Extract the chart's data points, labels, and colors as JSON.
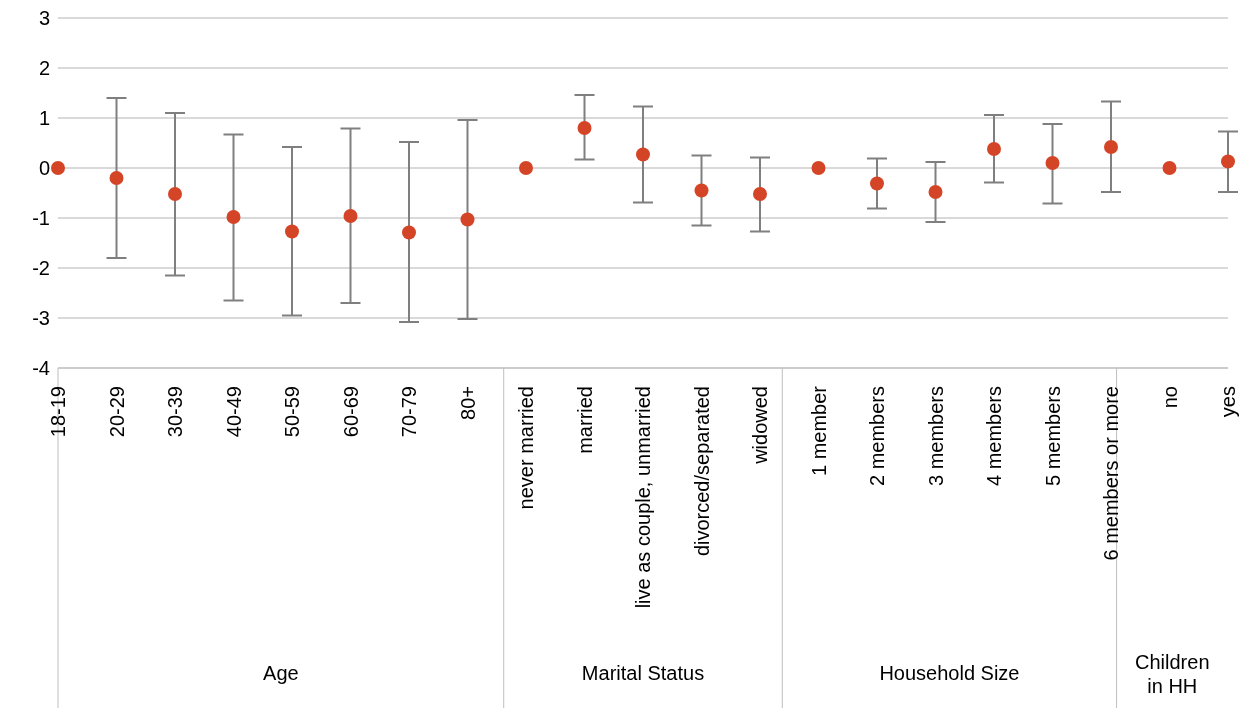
{
  "chart_data": {
    "type": "scatter",
    "categories": [
      "18-19",
      "20-29",
      "30-39",
      "40-49",
      "50-59",
      "60-69",
      "70-79",
      "80+",
      "never married",
      "married",
      "live as couple, unmarried",
      "divorced/separated",
      "widowed",
      "1 member",
      "2 members",
      "3 members",
      "4 members",
      "5 members",
      "6 members or more",
      "no",
      "yes"
    ],
    "values": [
      0,
      -0.2,
      -0.52,
      -0.98,
      -1.27,
      -0.96,
      -1.29,
      -1.03,
      0,
      0.8,
      0.27,
      -0.45,
      -0.52,
      0,
      -0.31,
      -0.48,
      0.38,
      0.1,
      0.42,
      0,
      0.13
    ],
    "errors": [
      null,
      [
        -1.8,
        1.4
      ],
      [
        -2.15,
        1.1
      ],
      [
        -2.65,
        0.67
      ],
      [
        -2.95,
        0.42
      ],
      [
        -2.7,
        0.79
      ],
      [
        -3.08,
        0.52
      ],
      [
        -3.02,
        0.96
      ],
      null,
      [
        0.17,
        1.46
      ],
      [
        -0.69,
        1.23
      ],
      [
        -1.15,
        0.25
      ],
      [
        -1.27,
        0.21
      ],
      null,
      [
        -0.81,
        0.19
      ],
      [
        -1.08,
        0.12
      ],
      [
        -0.29,
        1.06
      ],
      [
        -0.71,
        0.88
      ],
      [
        -0.48,
        1.33
      ],
      null,
      [
        -0.48,
        0.73
      ]
    ],
    "color": "#d44527",
    "ylim": [
      -4,
      3
    ],
    "yticks": [
      -4,
      -3,
      -2,
      -1,
      0,
      1,
      2,
      3
    ],
    "grid": "y",
    "marker": "circle",
    "annotations": [
      "Age",
      "Marital Status",
      "Household Size",
      "Children in HH"
    ]
  }
}
